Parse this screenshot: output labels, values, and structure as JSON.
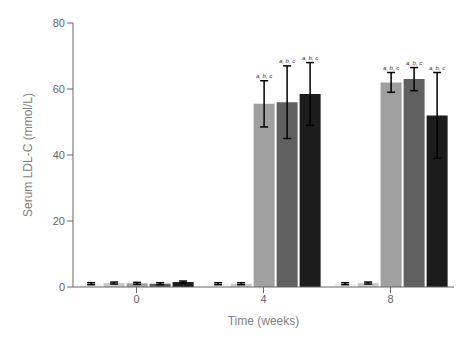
{
  "chart_data": {
    "type": "bar",
    "categories": [
      "0",
      "4",
      "8"
    ],
    "xlabel": "Time (weeks)",
    "ylabel": "Serum LDL-C (mmol/L)",
    "ylim": [
      0,
      80
    ],
    "yticks": [
      0,
      20,
      40,
      60,
      80
    ],
    "grid": false,
    "series": [
      {
        "color": "#f2f2f2",
        "values": [
          1.0,
          1.0,
          1.0
        ],
        "errors": [
          0.3,
          0.3,
          0.3
        ]
      },
      {
        "color": "#c8c8c8",
        "values": [
          1.2,
          1.0,
          1.2
        ],
        "errors": [
          0.3,
          0.3,
          0.3
        ]
      },
      {
        "color": "#a0a0a0",
        "values": [
          1.1,
          55.5,
          62.0
        ],
        "errors": [
          0.3,
          7.0,
          3.0
        ],
        "annotations": [
          null,
          "a, b, c",
          "a, b, c"
        ]
      },
      {
        "color": "#606060",
        "values": [
          1.0,
          56.0,
          63.0
        ],
        "errors": [
          0.3,
          11.0,
          3.5
        ],
        "annotations": [
          null,
          "a, b, c",
          "a, b, c"
        ]
      },
      {
        "color": "#1c1c1c",
        "values": [
          1.5,
          58.5,
          52.0
        ],
        "errors": [
          0.3,
          9.5,
          13.0
        ],
        "annotations": [
          null,
          "a, b, c",
          "a, b, c"
        ]
      }
    ]
  }
}
